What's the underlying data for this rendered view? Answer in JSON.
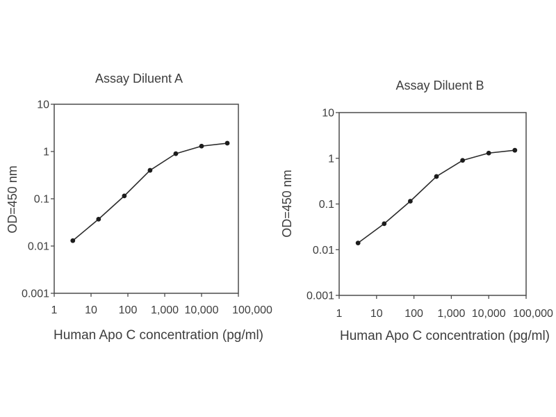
{
  "figure": {
    "description": "Two ELISA standard curve plots side by side",
    "background": "#ffffff"
  },
  "colors": {
    "text": "#3d3d3d",
    "axis": "#4b4b4b",
    "curve": "#2b2b2b",
    "marker": "#1c1c1c",
    "background": "#ffffff"
  },
  "chart_data": [
    {
      "type": "line",
      "title": "Assay Diluent A",
      "xlabel": "Human Apo C concentration (pg/ml)",
      "ylabel": "OD=450 nm",
      "xscale": "log",
      "yscale": "log",
      "xlim": [
        1,
        100000
      ],
      "ylim": [
        0.001,
        10
      ],
      "grid": false,
      "legend": "none",
      "x_tick_values": [
        1,
        10,
        100,
        1000,
        10000,
        100000
      ],
      "x_tick_labels": [
        "1",
        "10",
        "100",
        "1,000",
        "10,000",
        "100,000"
      ],
      "y_tick_values": [
        0.001,
        0.01,
        0.1,
        1,
        10
      ],
      "y_tick_labels": [
        "0.001",
        "0.01",
        "0.1",
        "1",
        "10"
      ],
      "series": [
        {
          "name": "standard-curve",
          "marker": "filled-circle",
          "x": [
            3.2,
            16,
            80,
            400,
            2000,
            10000,
            50000
          ],
          "y": [
            0.013,
            0.037,
            0.115,
            0.4,
            0.9,
            1.3,
            1.5
          ]
        }
      ]
    },
    {
      "type": "line",
      "title": "Assay Diluent B",
      "xlabel": "Human Apo C concentration (pg/ml)",
      "ylabel": "OD=450 nm",
      "xscale": "log",
      "yscale": "log",
      "xlim": [
        1,
        100000
      ],
      "ylim": [
        0.001,
        10
      ],
      "grid": false,
      "legend": "none",
      "x_tick_values": [
        1,
        10,
        100,
        1000,
        10000,
        100000
      ],
      "x_tick_labels": [
        "1",
        "10",
        "100",
        "1,000",
        "10,000",
        "100,000"
      ],
      "y_tick_values": [
        0.001,
        0.01,
        0.1,
        1,
        10
      ],
      "y_tick_labels": [
        "0.001",
        "0.01",
        "0.1",
        "1",
        "10"
      ],
      "series": [
        {
          "name": "standard-curve",
          "marker": "filled-circle",
          "x": [
            3.2,
            16,
            80,
            400,
            2000,
            10000,
            50000
          ],
          "y": [
            0.014,
            0.037,
            0.115,
            0.4,
            0.9,
            1.3,
            1.5
          ]
        }
      ]
    }
  ]
}
